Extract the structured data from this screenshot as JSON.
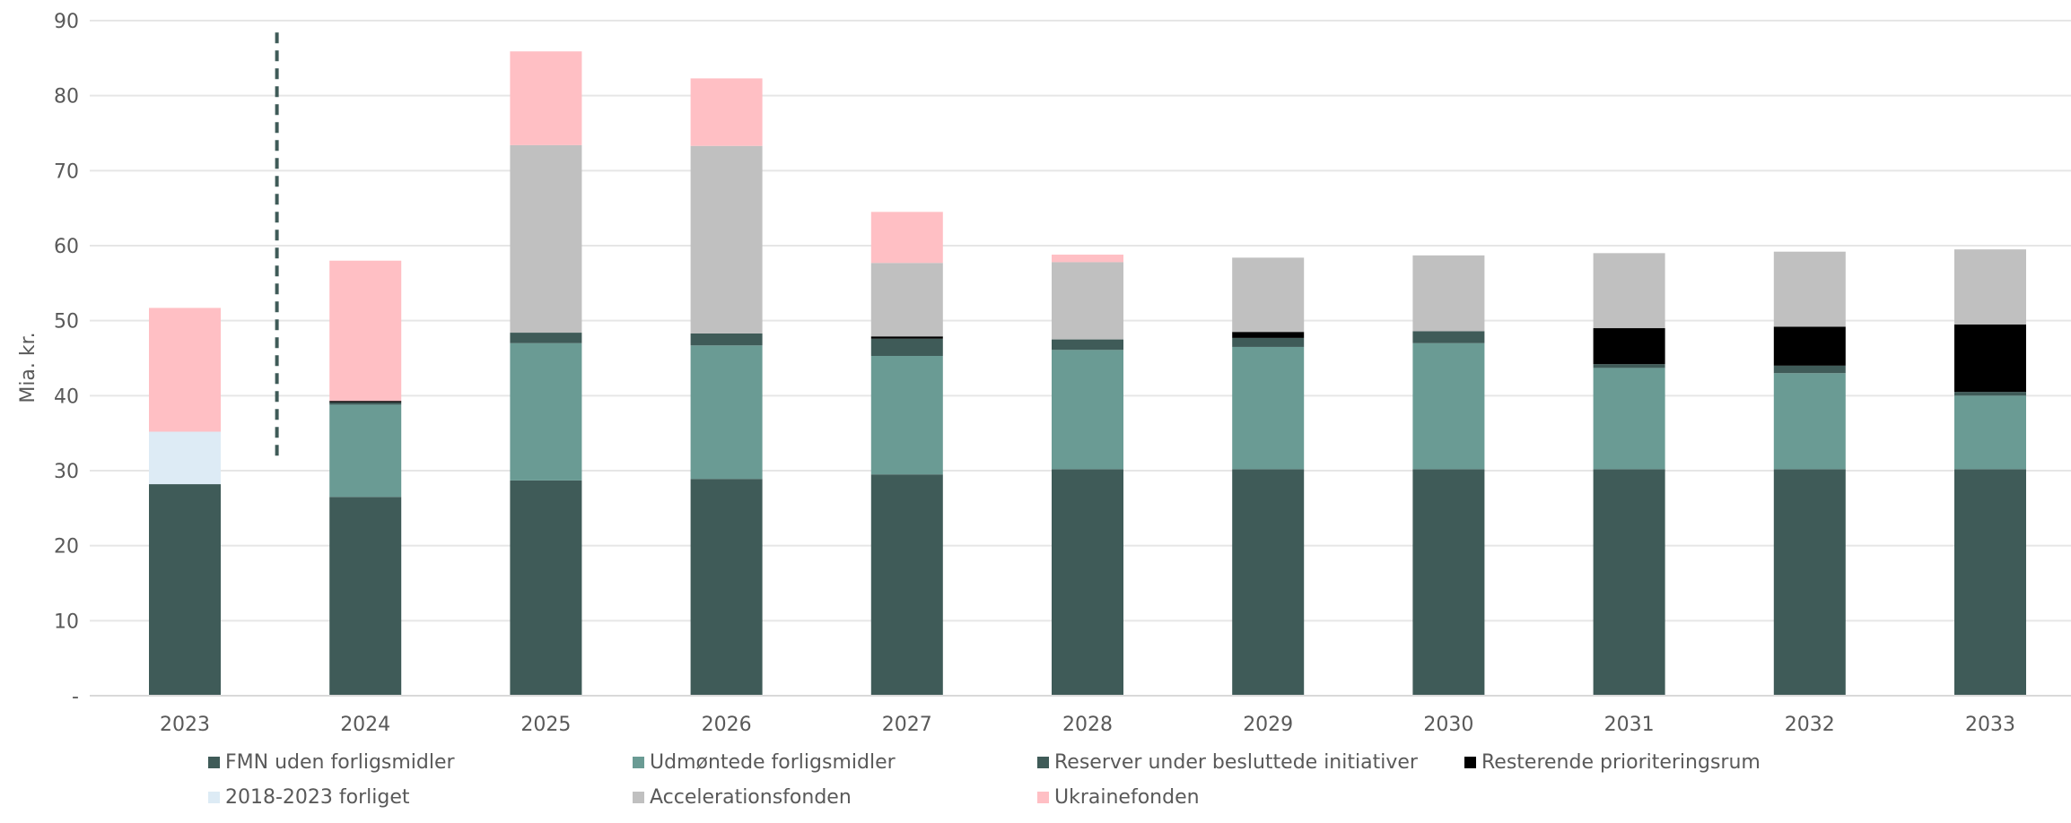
{
  "chart_data": {
    "type": "bar",
    "stacked": true,
    "title": "",
    "xlabel": "",
    "ylabel": "Mia. kr.",
    "ylim": [
      0,
      90
    ],
    "yticks": [
      "-",
      "10",
      "20",
      "30",
      "40",
      "50",
      "60",
      "70",
      "80",
      "90"
    ],
    "grid": true,
    "legend_position": "bottom",
    "categories": [
      "2023",
      "2024",
      "2025",
      "2026",
      "2027",
      "2028",
      "2029",
      "2030",
      "2031",
      "2032",
      "2033"
    ],
    "series": [
      {
        "name": "FMN uden forligsmidler",
        "color": "#3f5b58",
        "values": [
          28.2,
          26.5,
          28.7,
          28.9,
          29.5,
          30.2,
          30.2,
          30.2,
          30.2,
          30.2,
          30.2
        ]
      },
      {
        "name": "Udmøntede forligsmidler",
        "color": "#6a9b94",
        "values": [
          0,
          12.3,
          18.3,
          17.8,
          15.8,
          15.9,
          16.3,
          16.8,
          13.5,
          12.8,
          9.8
        ]
      },
      {
        "name": "Reserver under besluttede initiativer",
        "color": "#3f5b58",
        "values": [
          0,
          0.3,
          1.4,
          1.6,
          2.3,
          1.4,
          1.2,
          1.6,
          0.5,
          1.0,
          0.5
        ]
      },
      {
        "name": "Resterende prioriteringsrum",
        "color": "#000000",
        "values": [
          0,
          0.2,
          0,
          0,
          0.3,
          0,
          0.8,
          0,
          4.8,
          5.2,
          9.0
        ]
      },
      {
        "name": "2018-2023 forliget",
        "color": "#ddebf5",
        "values": [
          7.0,
          0,
          0,
          0,
          0,
          0,
          0,
          0,
          0,
          0,
          0
        ]
      },
      {
        "name": "Accelerationsfonden",
        "color": "#c0c0c0",
        "values": [
          0,
          0,
          25.0,
          25.0,
          9.8,
          10.3,
          9.9,
          10.1,
          10.0,
          10.0,
          10.0
        ]
      },
      {
        "name": "Ukrainefonden",
        "color": "#ffbfc4",
        "values": [
          16.5,
          18.7,
          12.5,
          9.0,
          6.8,
          1.0,
          0,
          0,
          0,
          0,
          0
        ]
      }
    ],
    "annotations": [
      {
        "type": "vertical-dashed-line",
        "between": [
          "2023",
          "2024"
        ],
        "y_from": 32,
        "y_to": 89
      }
    ]
  }
}
